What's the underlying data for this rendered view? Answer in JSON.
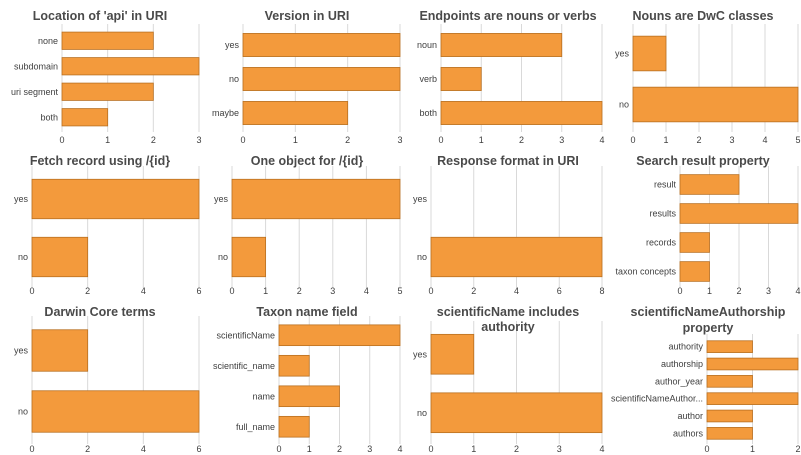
{
  "chart_data": [
    {
      "type": "bar",
      "orientation": "horizontal",
      "title": "Location of 'api' in URI",
      "categories": [
        "none",
        "subdomain",
        "uri segment",
        "both"
      ],
      "values": [
        2,
        3,
        2,
        1
      ],
      "xlim": [
        0,
        3
      ],
      "ticks": [
        0,
        1,
        2,
        3
      ],
      "grid": "vertical"
    },
    {
      "type": "bar",
      "orientation": "horizontal",
      "title": "Version in URI",
      "categories": [
        "yes",
        "no",
        "maybe"
      ],
      "values": [
        3,
        3,
        2
      ],
      "xlim": [
        0,
        3
      ],
      "ticks": [
        0,
        1,
        2,
        3
      ],
      "grid": "vertical"
    },
    {
      "type": "bar",
      "orientation": "horizontal",
      "title": "Endpoints are nouns or verbs",
      "categories": [
        "noun",
        "verb",
        "both"
      ],
      "values": [
        3,
        1,
        4
      ],
      "xlim": [
        0,
        4
      ],
      "ticks": [
        0,
        1,
        2,
        3,
        4
      ],
      "grid": "vertical"
    },
    {
      "type": "bar",
      "orientation": "horizontal",
      "title": "Nouns are DwC classes",
      "categories": [
        "yes",
        "no"
      ],
      "values": [
        1,
        5
      ],
      "xlim": [
        0,
        5
      ],
      "ticks": [
        0,
        1,
        2,
        3,
        4,
        5
      ],
      "grid": "vertical"
    },
    {
      "type": "bar",
      "orientation": "horizontal",
      "title": "Fetch record using /{id}",
      "categories": [
        "yes",
        "no"
      ],
      "values": [
        6,
        2
      ],
      "xlim": [
        0,
        6
      ],
      "ticks": [
        0,
        2,
        4,
        6
      ],
      "grid": "vertical"
    },
    {
      "type": "bar",
      "orientation": "horizontal",
      "title": "One object for /{id}",
      "categories": [
        "yes",
        "no"
      ],
      "values": [
        5,
        1
      ],
      "xlim": [
        0,
        5
      ],
      "ticks": [
        0,
        1,
        2,
        3,
        4,
        5
      ],
      "grid": "vertical"
    },
    {
      "type": "bar",
      "orientation": "horizontal",
      "title": "Response format in URI",
      "categories": [
        "yes",
        "no"
      ],
      "values": [
        0,
        8
      ],
      "xlim": [
        0,
        8
      ],
      "ticks": [
        0,
        2,
        4,
        6,
        8
      ],
      "grid": "vertical"
    },
    {
      "type": "bar",
      "orientation": "horizontal",
      "title": "Search result property",
      "categories": [
        "result",
        "results",
        "records",
        "taxon concepts"
      ],
      "values": [
        2,
        4,
        1,
        1
      ],
      "xlim": [
        0,
        4
      ],
      "ticks": [
        0,
        1,
        2,
        3,
        4
      ],
      "grid": "vertical"
    },
    {
      "type": "bar",
      "orientation": "horizontal",
      "title": "Darwin Core terms",
      "categories": [
        "yes",
        "no"
      ],
      "values": [
        2,
        6
      ],
      "xlim": [
        0,
        6
      ],
      "ticks": [
        0,
        2,
        4,
        6
      ],
      "grid": "vertical"
    },
    {
      "type": "bar",
      "orientation": "horizontal",
      "title": "Taxon name field",
      "categories": [
        "scientificName",
        "scientific_name",
        "name",
        "full_name"
      ],
      "values": [
        4,
        1,
        2,
        1
      ],
      "xlim": [
        0,
        4
      ],
      "ticks": [
        0,
        1,
        2,
        3,
        4
      ],
      "grid": "vertical"
    },
    {
      "type": "bar",
      "orientation": "horizontal",
      "title": [
        "scientificName includes",
        "authority"
      ],
      "categories": [
        "yes",
        "no"
      ],
      "values": [
        1,
        4
      ],
      "xlim": [
        0,
        4
      ],
      "ticks": [
        0,
        1,
        2,
        3,
        4
      ],
      "grid": "vertical"
    },
    {
      "type": "bar",
      "orientation": "horizontal",
      "title": [
        "scientificNameAuthorship",
        "property"
      ],
      "categories": [
        "authority",
        "authorship",
        "author_year",
        "scientificNameAuthor...",
        "author",
        "authors"
      ],
      "values": [
        1,
        2,
        1,
        2,
        1,
        1
      ],
      "xlim": [
        0,
        2
      ],
      "ticks": [
        0,
        1,
        2
      ],
      "grid": "vertical"
    }
  ]
}
